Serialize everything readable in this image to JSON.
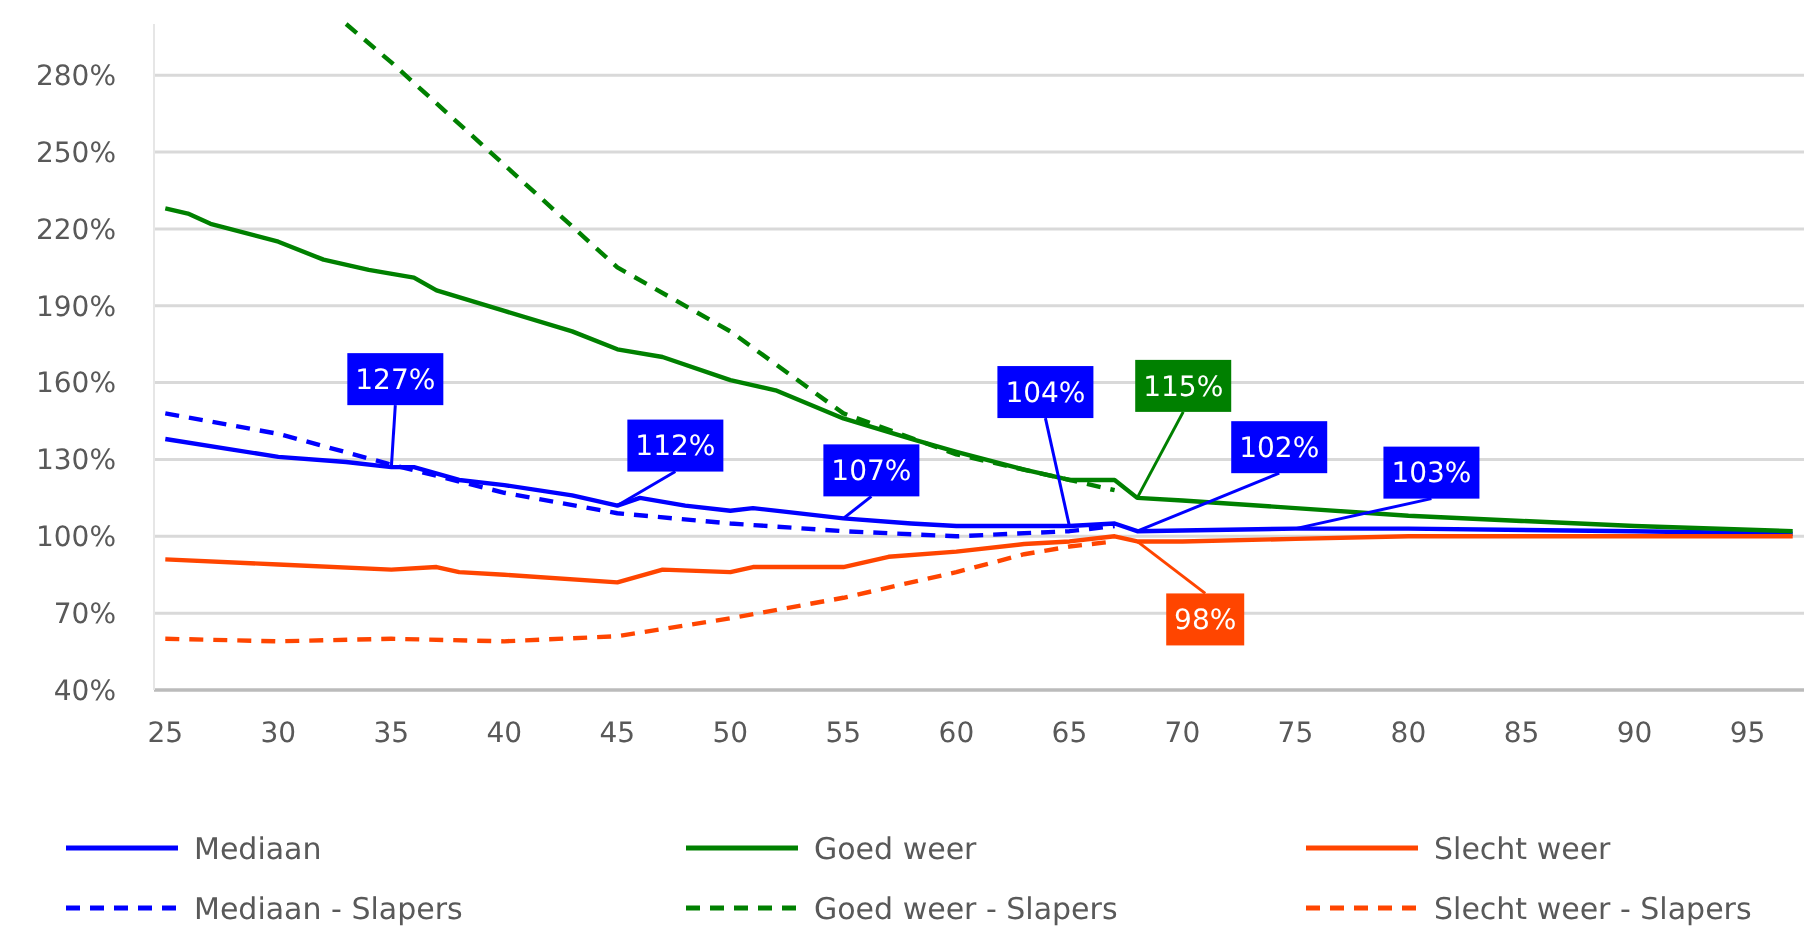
{
  "chart_data": {
    "type": "line",
    "xlim": [
      24.5,
      97.5
    ],
    "xticks": [
      25,
      30,
      35,
      40,
      45,
      50,
      55,
      60,
      65,
      70,
      75,
      80,
      85,
      90,
      95
    ],
    "ylim": [
      40,
      300
    ],
    "yticks": [
      {
        "value": 40,
        "label": "40%"
      },
      {
        "value": 70,
        "label": "70%"
      },
      {
        "value": 100,
        "label": "100%"
      },
      {
        "value": 130,
        "label": "130%"
      },
      {
        "value": 160,
        "label": "160%"
      },
      {
        "value": 190,
        "label": "190%"
      },
      {
        "value": 220,
        "label": "220%"
      },
      {
        "value": 250,
        "label": "250%"
      },
      {
        "value": 280,
        "label": "280%"
      }
    ],
    "grid": "y",
    "legend": "bottom",
    "marker": "none",
    "series": [
      {
        "name": "Mediaan",
        "color": "#0000ff",
        "line_style": "solid",
        "x": [
          25,
          30,
          33,
          35,
          36,
          38,
          40,
          43,
          45,
          46,
          48,
          50,
          51,
          55,
          58,
          60,
          65,
          67,
          68,
          75,
          80,
          90,
          97
        ],
        "values": [
          138,
          131,
          129,
          127,
          127,
          122,
          120,
          116,
          112,
          115,
          112,
          110,
          111,
          107,
          105,
          104,
          104,
          105,
          102,
          103,
          103,
          102,
          101
        ]
      },
      {
        "name": "Goed weer",
        "color": "#008000",
        "line_style": "solid",
        "x": [
          25,
          26,
          27,
          30,
          32,
          34,
          36,
          37,
          40,
          43,
          45,
          47,
          50,
          52,
          55,
          58,
          60,
          63,
          65,
          67,
          68,
          70,
          75,
          80,
          85,
          90,
          97
        ],
        "values": [
          228,
          226,
          222,
          215,
          208,
          204,
          201,
          196,
          188,
          180,
          173,
          170,
          161,
          157,
          146,
          138,
          133,
          126,
          122,
          122,
          115,
          114,
          111,
          108,
          106,
          104,
          102
        ]
      },
      {
        "name": "Slecht weer",
        "color": "#ff4500",
        "line_style": "solid",
        "x": [
          25,
          30,
          35,
          37,
          38,
          40,
          45,
          47,
          50,
          51,
          55,
          57,
          60,
          63,
          65,
          67,
          68,
          70,
          75,
          80,
          97
        ],
        "values": [
          91,
          89,
          87,
          88,
          86,
          85,
          82,
          87,
          86,
          88,
          88,
          92,
          94,
          97,
          98,
          100,
          98,
          98,
          99,
          100,
          100
        ]
      },
      {
        "name": "Mediaan - Slapers",
        "color": "#0000ff",
        "line_style": "dashed",
        "x": [
          25,
          30,
          35,
          40,
          45,
          50,
          55,
          60,
          65,
          67
        ],
        "values": [
          148,
          140,
          128,
          117,
          109,
          105,
          102,
          100,
          102,
          104
        ]
      },
      {
        "name": "Goed weer - Slapers",
        "color": "#008000",
        "line_style": "dashed",
        "x": [
          33,
          35,
          40,
          45,
          50,
          55,
          60,
          65,
          67
        ],
        "values": [
          300,
          285,
          245,
          205,
          180,
          148,
          132,
          122,
          118
        ]
      },
      {
        "name": "Slecht weer - Slapers",
        "color": "#ff4500",
        "line_style": "dashed",
        "x": [
          25,
          30,
          35,
          40,
          45,
          50,
          55,
          60,
          63,
          65,
          67
        ],
        "values": [
          60,
          59,
          60,
          59,
          61,
          68,
          76,
          86,
          93,
          96,
          98
        ]
      }
    ],
    "annotations": [
      {
        "text": "127%",
        "x": 35,
        "y": 127
      },
      {
        "text": "112%",
        "x": 45,
        "y": 112
      },
      {
        "text": "107%",
        "x": 55,
        "y": 107
      },
      {
        "text": "104%",
        "x": 65,
        "y": 104
      },
      {
        "text": "115%",
        "x": 68,
        "y": 115
      },
      {
        "text": "102%",
        "x": 68,
        "y": 102
      },
      {
        "text": "103%",
        "x": 75,
        "y": 103
      },
      {
        "text": "98%",
        "x": 68,
        "y": 98
      }
    ]
  }
}
